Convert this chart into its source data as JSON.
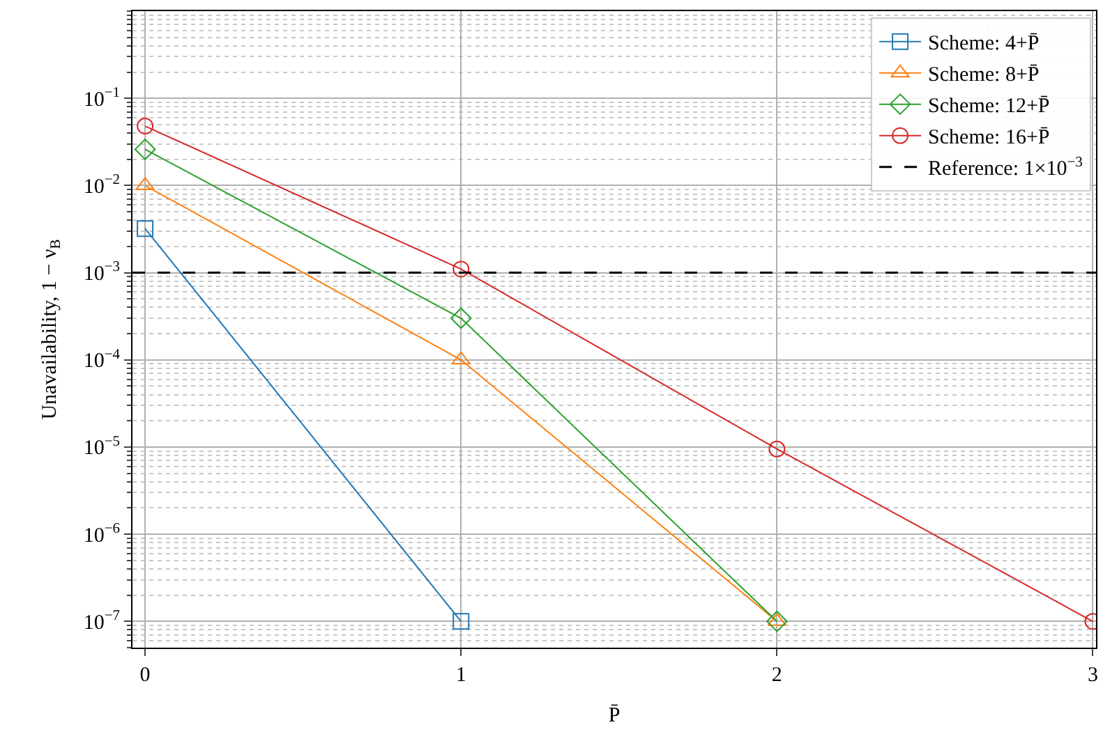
{
  "chart_data": {
    "type": "line",
    "xlabel": "P̄",
    "ylabel": "Unavailability, 1 − ν$_{B}$",
    "x": [
      0,
      1,
      2,
      3
    ],
    "series": [
      {
        "name": "Scheme: 4+P̄",
        "color": "#1f77b4",
        "marker": "square",
        "values": [
          0.0032,
          1e-07,
          null,
          null
        ]
      },
      {
        "name": "Scheme: 8+P̄",
        "color": "#ff7f0e",
        "marker": "triangle",
        "values": [
          0.01,
          0.0001,
          1e-07,
          null
        ]
      },
      {
        "name": "Scheme: 12+P̄",
        "color": "#2ca02c",
        "marker": "diamond",
        "values": [
          0.026,
          0.0003,
          1e-07,
          null
        ]
      },
      {
        "name": "Scheme: 16+P̄",
        "color": "#d62728",
        "marker": "circle",
        "values": [
          0.048,
          0.0011,
          9.5e-06,
          1e-07
        ]
      }
    ],
    "ref_lines": [
      {
        "axis": "y",
        "value": 0.001,
        "label": "Reference: 1×10$^{−3}$",
        "color": "#000000",
        "line_style": "dashed"
      }
    ],
    "log": "y",
    "xlim": [
      -0.04,
      3.01
    ],
    "ylim": [
      5e-08,
      1
    ],
    "xticks": [
      0,
      1,
      2,
      3
    ],
    "yticks": [
      {
        "value": 1e-07,
        "label": "10$^{−7}$"
      },
      {
        "value": 1e-06,
        "label": "10$^{−6}$"
      },
      {
        "value": 1e-05,
        "label": "10$^{−5}$"
      },
      {
        "value": 0.0001,
        "label": "10$^{−4}$"
      },
      {
        "value": 0.001,
        "label": "10$^{−3}$"
      },
      {
        "value": 0.01,
        "label": "10$^{−2}$"
      },
      {
        "value": 0.1,
        "label": "10$^{−1}$"
      }
    ],
    "grid": true,
    "legend": "top right",
    "line_style": "solid"
  }
}
